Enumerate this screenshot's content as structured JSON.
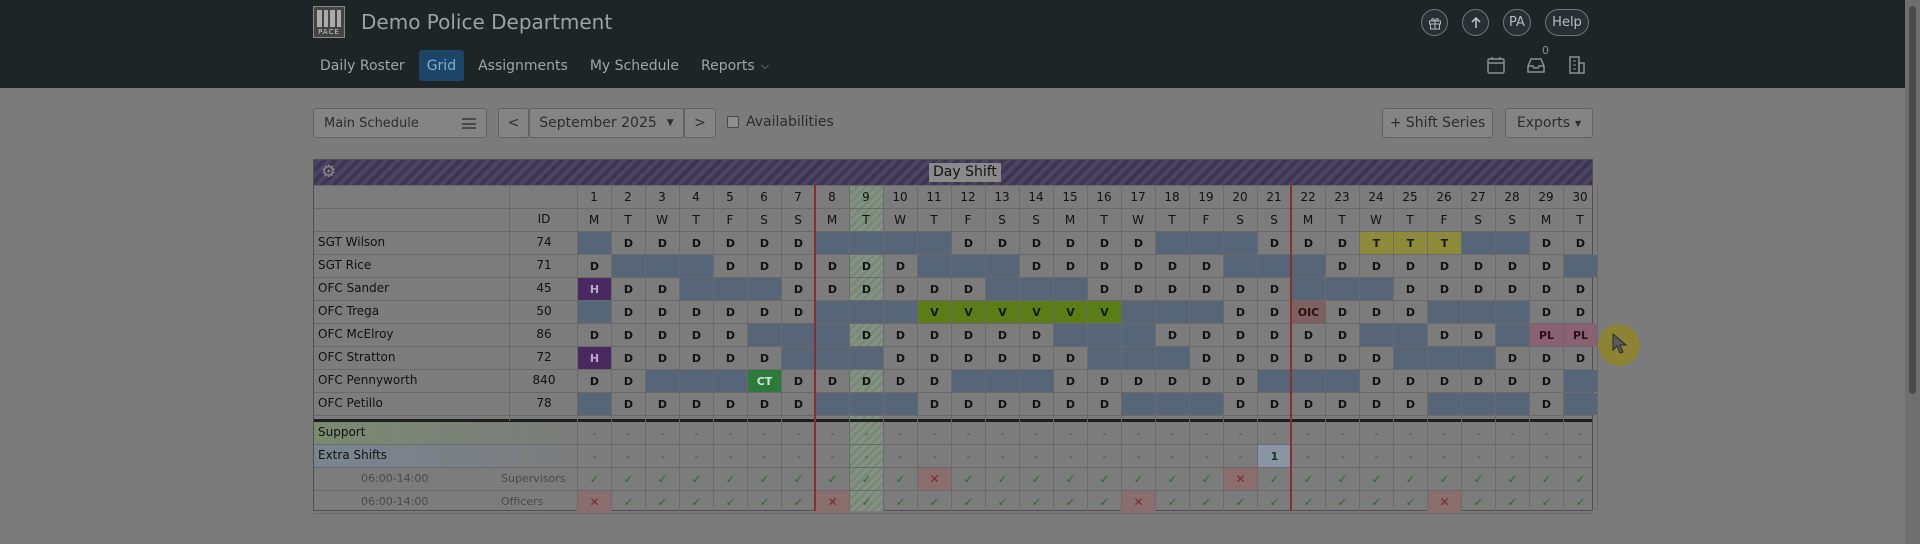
{
  "header": {
    "logo_text": "PACE",
    "title": "Demo Police Department",
    "buttons": {
      "user_initials": "PA",
      "help": "Help"
    },
    "inbox_count": "0"
  },
  "nav": {
    "items": [
      {
        "label": "Daily Roster",
        "active": false
      },
      {
        "label": "Grid",
        "active": true
      },
      {
        "label": "Assignments",
        "active": false
      },
      {
        "label": "My Schedule",
        "active": false
      },
      {
        "label": "Reports",
        "active": false,
        "dropdown": true
      }
    ]
  },
  "toolbar": {
    "schedule": "Main Schedule",
    "prev": "<",
    "month": "September 2025",
    "next": ">",
    "availabilities": "Availabilities",
    "availabilities_checked": false,
    "shift_series": "+ Shift Series",
    "exports": "Exports"
  },
  "grid": {
    "shift": "Day Shift",
    "id_header": "ID",
    "days": [
      "1",
      "2",
      "3",
      "4",
      "5",
      "6",
      "7",
      "8",
      "9",
      "10",
      "11",
      "12",
      "13",
      "14",
      "15",
      "16",
      "17",
      "18",
      "19",
      "20",
      "21",
      "22",
      "23",
      "24",
      "25",
      "26",
      "27",
      "28",
      "29",
      "30"
    ],
    "weekdays": [
      "M",
      "T",
      "W",
      "T",
      "F",
      "S",
      "S",
      "M",
      "T",
      "W",
      "T",
      "F",
      "S",
      "S",
      "M",
      "T",
      "W",
      "T",
      "F",
      "S",
      "S",
      "M",
      "T",
      "W",
      "T",
      "F",
      "S",
      "S",
      "M",
      "T"
    ],
    "officers": [
      {
        "name": "SGT Wilson",
        "id": "74",
        "cells": [
          "B",
          "D",
          "D",
          "D",
          "D",
          "D",
          "D",
          "B",
          "B",
          "B",
          "B",
          "D",
          "D",
          "D",
          "D",
          "D",
          "D",
          "B",
          "B",
          "B",
          "D",
          "D",
          "D",
          "T",
          "T",
          "T",
          "B",
          "B",
          "D",
          "D"
        ]
      },
      {
        "name": "SGT Rice",
        "id": "71",
        "cells": [
          "D",
          "B",
          "B",
          "B",
          "D",
          "D",
          "D",
          "D",
          "D",
          "D",
          "B",
          "B",
          "B",
          "D",
          "D",
          "D",
          "D",
          "D",
          "D",
          "B",
          "B",
          "B",
          "D",
          "D",
          "D",
          "D",
          "D",
          "D",
          "D",
          "B"
        ]
      },
      {
        "name": "OFC Sander",
        "id": "45",
        "cells": [
          "H",
          "D",
          "D",
          "B",
          "B",
          "B",
          "D",
          "D",
          "D",
          "D",
          "D",
          "D",
          "B",
          "B",
          "B",
          "D",
          "D",
          "D",
          "D",
          "D",
          "D",
          "B",
          "B",
          "B",
          "D",
          "D",
          "D",
          "D",
          "D",
          "D"
        ]
      },
      {
        "name": "OFC Trega",
        "id": "50",
        "cells": [
          "B",
          "D",
          "D",
          "D",
          "D",
          "D",
          "D",
          "B",
          "B",
          "B",
          "V",
          "V",
          "V",
          "V",
          "V",
          "V",
          "B",
          "B",
          "B",
          "D",
          "D",
          "OIC",
          "D",
          "D",
          "D",
          "B",
          "B",
          "B",
          "D",
          "D"
        ]
      },
      {
        "name": "OFC McElroy",
        "id": "86",
        "cells": [
          "D",
          "D",
          "D",
          "D",
          "D",
          "B",
          "B",
          "B",
          "D",
          "D",
          "D",
          "D",
          "D",
          "D",
          "B",
          "B",
          "B",
          "D",
          "D",
          "D",
          "D",
          "D",
          "D",
          "B",
          "B",
          "D",
          "D",
          "B",
          "PL",
          "PL"
        ]
      },
      {
        "name": "OFC Stratton",
        "id": "72",
        "cells": [
          "H",
          "D",
          "D",
          "D",
          "D",
          "D",
          "B",
          "B",
          "B",
          "D",
          "D",
          "D",
          "D",
          "D",
          "D",
          "B",
          "B",
          "B",
          "D",
          "D",
          "D",
          "D",
          "D",
          "D",
          "B",
          "B",
          "B",
          "D",
          "D",
          "D"
        ]
      },
      {
        "name": "OFC Pennyworth",
        "id": "840",
        "cells": [
          "D",
          "D",
          "B",
          "B",
          "B",
          "CT",
          "D",
          "D",
          "D",
          "D",
          "D",
          "B",
          "B",
          "B",
          "D",
          "D",
          "D",
          "D",
          "D",
          "D",
          "B",
          "B",
          "B",
          "D",
          "D",
          "D",
          "D",
          "D",
          "D",
          "B"
        ]
      },
      {
        "name": "OFC Petillo",
        "id": "78",
        "cells": [
          "B",
          "D",
          "D",
          "D",
          "D",
          "D",
          "D",
          "B",
          "B",
          "B",
          "D",
          "D",
          "D",
          "D",
          "D",
          "D",
          "B",
          "B",
          "B",
          "D",
          "D",
          "D",
          "D",
          "D",
          "D",
          "B",
          "B",
          "B",
          "D",
          "B"
        ]
      }
    ],
    "summary": [
      {
        "label": "Support",
        "type": "dash"
      },
      {
        "label": "Extra Shifts",
        "type": "extra",
        "extra_value": "1",
        "extra_day": 21
      },
      {
        "time": "06:00-14:00",
        "role": "Supervisors",
        "type": "check",
        "fails": [
          11,
          20
        ]
      },
      {
        "time": "06:00-14:00",
        "role": "Officers",
        "type": "check",
        "fails": [
          1,
          8,
          17,
          26
        ]
      }
    ]
  },
  "colors": {
    "header_bg": "#1f2427",
    "off_cell": "#576579",
    "holiday": "#4a2860",
    "vacation": "#5b7d18",
    "training": "#8d8a3a",
    "comp_time": "#2e7a3a",
    "oic": "#7e6060",
    "personal_leave": "#8a6171"
  },
  "icons": [
    "gift-icon",
    "upload-icon",
    "calendar-icon",
    "inbox-icon",
    "building-icon",
    "gear-icon",
    "menu-icon",
    "caret-down-icon",
    "cursor-icon"
  ]
}
